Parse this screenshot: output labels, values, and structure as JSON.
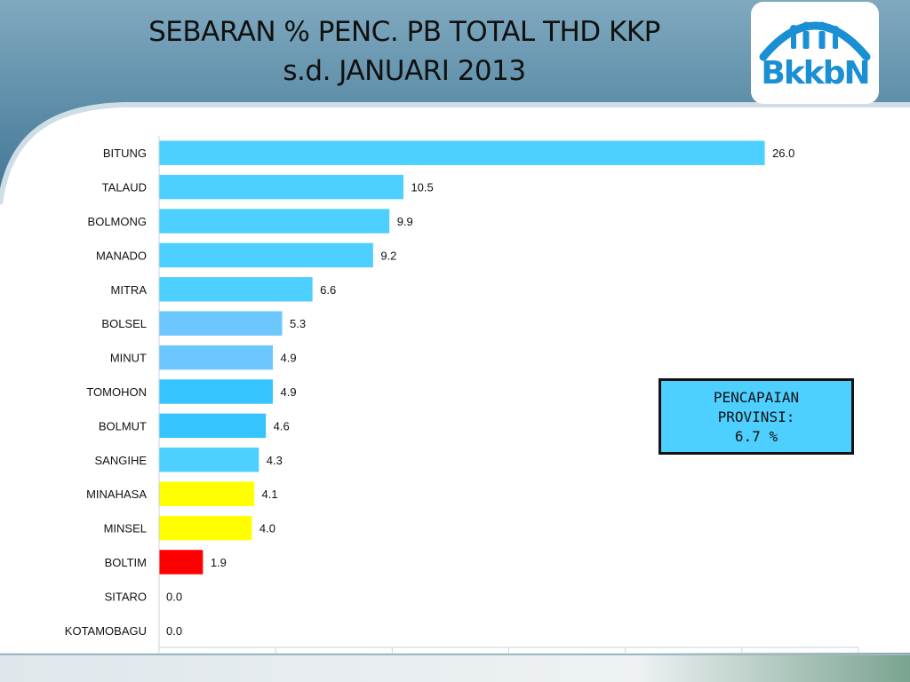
{
  "title": {
    "line1": "SEBARAN % PENC. PB TOTAL THD KKP",
    "line2": "s.d. JANUARI 2013"
  },
  "logo": {
    "text": "BkkbN",
    "icon": "family-arch-icon",
    "color": "#1a8fd4"
  },
  "callout": {
    "line1": "PENCAPAIAN",
    "line2": "PROVINSI:",
    "line3": "6.7 %"
  },
  "chart_data": {
    "type": "bar",
    "orientation": "horizontal",
    "categories": [
      "BITUNG",
      "TALAUD",
      "BOLMONG",
      "MANADO",
      "MITRA",
      "BOLSEL",
      "MINUT",
      "TOMOHON",
      "BOLMUT",
      "SANGIHE",
      "MINAHASA",
      "MINSEL",
      "BOLTIM",
      "SITARO",
      "KOTAMOBAGU"
    ],
    "values": [
      26.0,
      10.5,
      9.9,
      9.2,
      6.6,
      5.3,
      4.9,
      4.9,
      4.6,
      4.3,
      4.1,
      4.0,
      1.9,
      0.0,
      0.0
    ],
    "value_labels": [
      "26.0",
      "10.5",
      "9.9",
      "9.2",
      "6.6",
      "5.3",
      "4.9",
      "4.9",
      "4.6",
      "4.3",
      "4.1",
      "4.0",
      "1.9",
      "0.0",
      "0.0"
    ],
    "colors": [
      "#4dcfff",
      "#4dcfff",
      "#4dcfff",
      "#4dcfff",
      "#4dcfff",
      "#6cc7ff",
      "#6cc7ff",
      "#35c4ff",
      "#35c4ff",
      "#4dcfff",
      "#ffff00",
      "#ffff00",
      "#ff0000",
      "#4dcfff",
      "#4dcfff"
    ],
    "xlim": [
      0,
      30
    ],
    "grid": false,
    "legend": "none",
    "reference_value": 6.7
  }
}
